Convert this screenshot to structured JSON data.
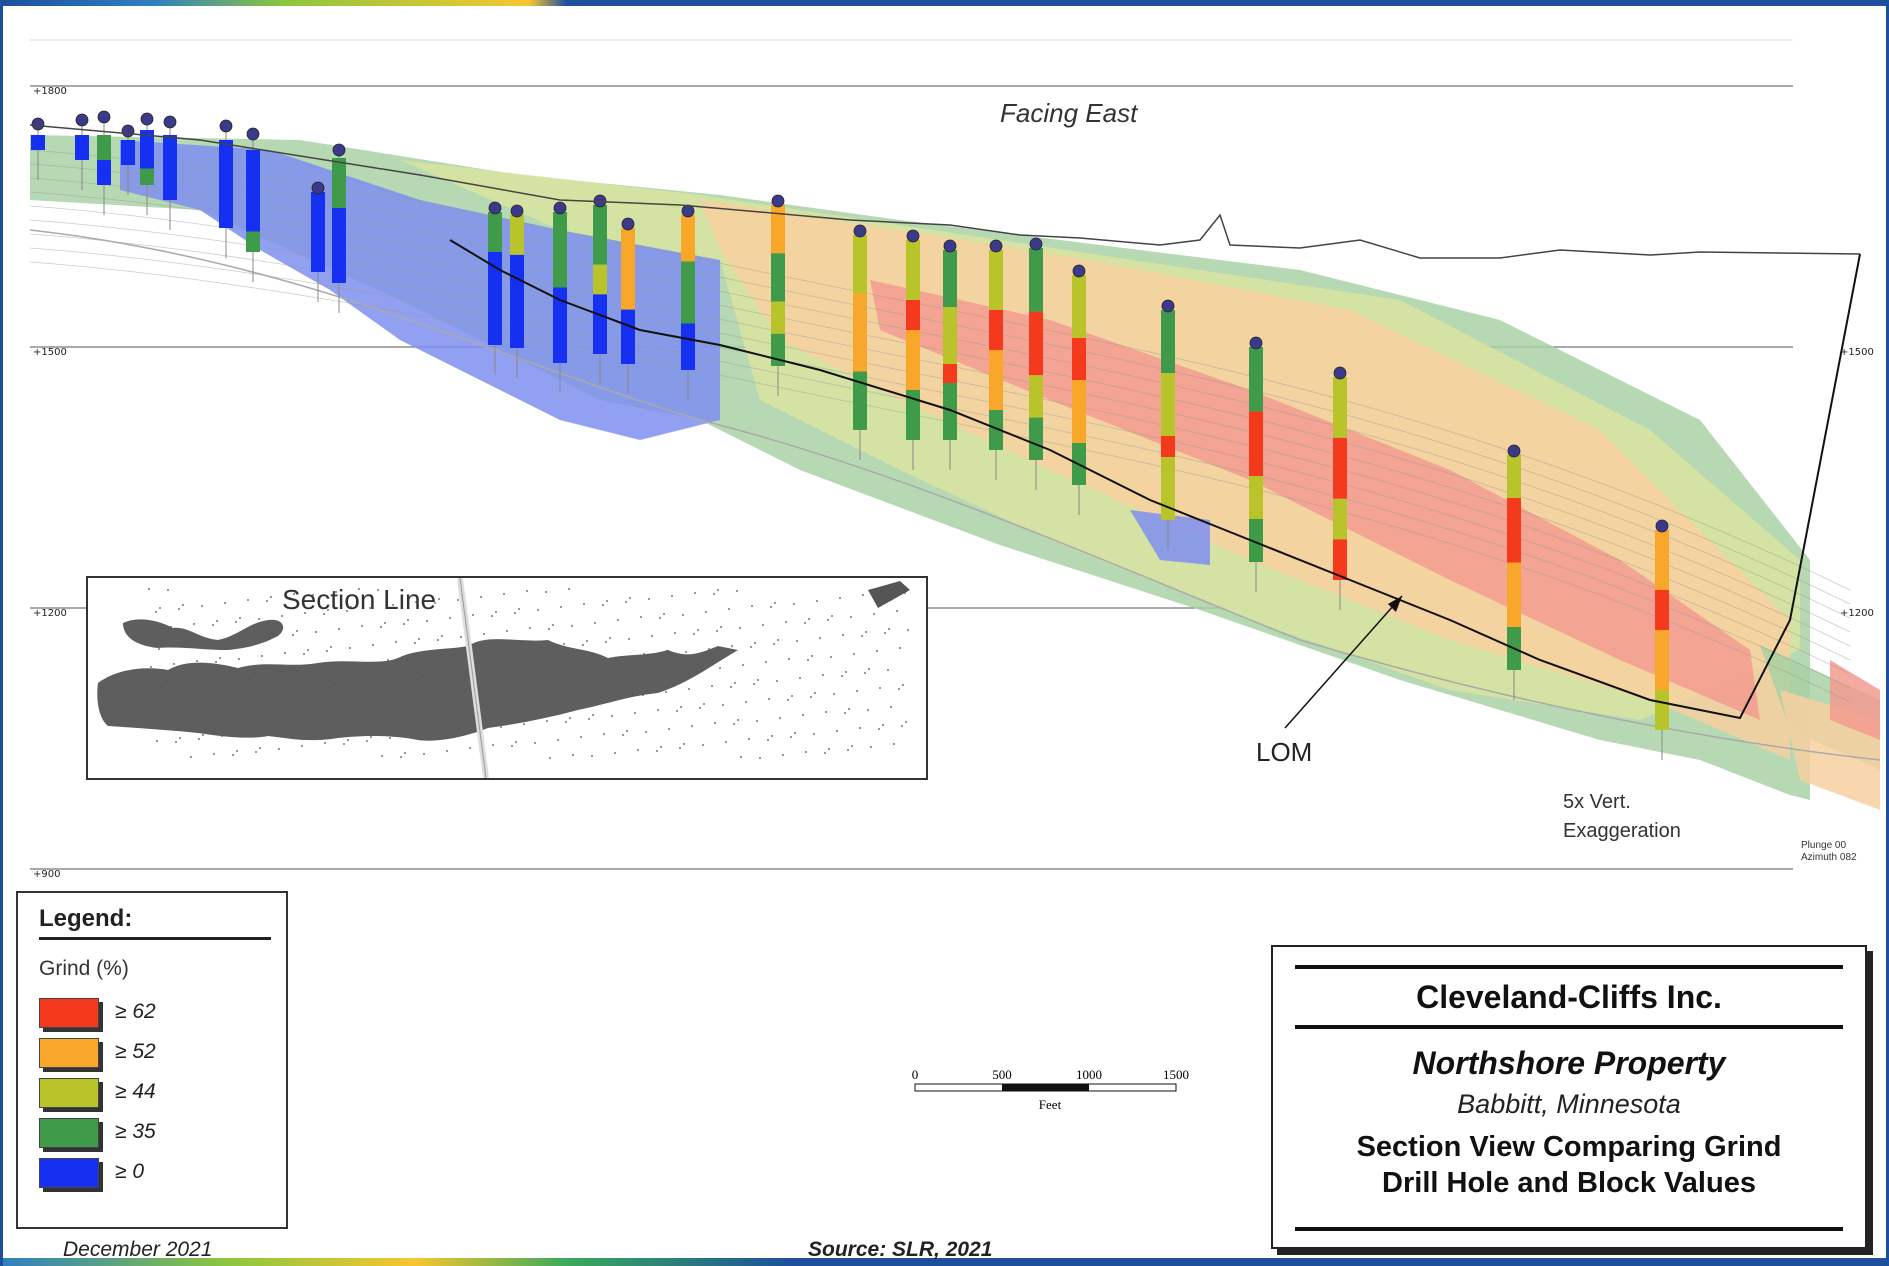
{
  "frame": {
    "colors": [
      "#1c4f9c",
      "#2e7fc1",
      "#8cc63f",
      "#f7c62f",
      "#3aaa5c"
    ]
  },
  "section": {
    "facing_label": "Facing East",
    "elevation_labels": [
      "+1800",
      "+1500",
      "+1200",
      "+900"
    ],
    "right_elevation_labels": [
      "+1500",
      "+1200"
    ],
    "lom_label": "LOM",
    "exaggeration_lines": [
      "5x Vert.",
      "Exaggeration"
    ],
    "orientation_lines": [
      "Plunge 00",
      "Azimuth 082"
    ],
    "inset_title": "Section Line",
    "grade_colors": {
      "ge62": "#f5391d",
      "ge52": "#f9a72a",
      "ge44": "#b9c42b",
      "ge35": "#3f9b4a",
      "ge0": "#1530f0"
    },
    "block_colors": {
      "red": "#f29b8f",
      "orange": "#f8d0a0",
      "yellow": "#d9e4a0",
      "green": "#a9d1a4",
      "blue": "#7f8ff0"
    },
    "collar_color": "#3b3a8a"
  },
  "legend": {
    "title": "Legend:",
    "subtitle": "Grind (%)",
    "items": [
      {
        "label": "≥ 62",
        "color": "#f5391d"
      },
      {
        "label": "≥ 52",
        "color": "#f9a72a"
      },
      {
        "label": "≥ 44",
        "color": "#b9c42b"
      },
      {
        "label": "≥ 35",
        "color": "#3f9b4a"
      },
      {
        "label": "≥ 0",
        "color": "#1530f0"
      }
    ]
  },
  "scale_bar": {
    "ticks": [
      "0",
      "500",
      "1000",
      "1500"
    ],
    "unit": "Feet"
  },
  "title_block": {
    "company": "Cleveland-Cliffs Inc.",
    "property": "Northshore Property",
    "location": "Babbitt, Minnesota",
    "description_lines": [
      "Section View Comparing Grind",
      "Drill Hole and Block Values"
    ]
  },
  "footer": {
    "date": "December 2021",
    "source": "Source: SLR, 2021"
  }
}
